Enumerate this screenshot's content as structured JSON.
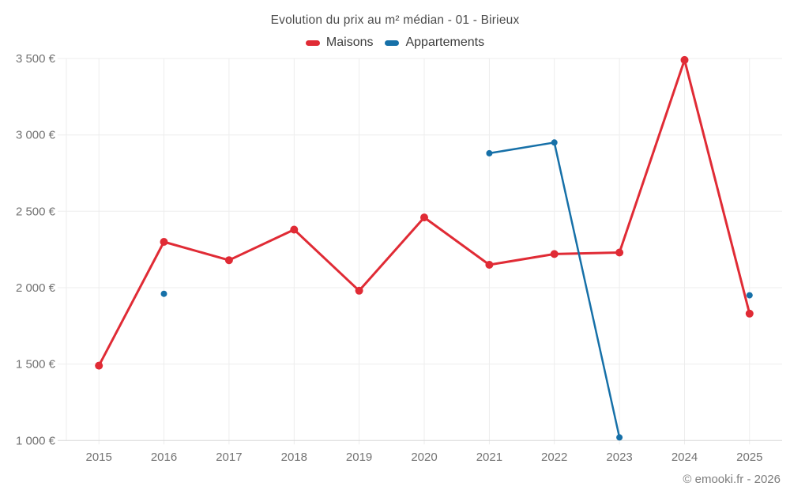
{
  "footer_credit": "© emooki.fr - 2026",
  "chart_data": {
    "type": "line",
    "title": "Evolution du prix au m² médian - 01 - Birieux",
    "xlabel": "",
    "ylabel": "",
    "x": [
      2015,
      2016,
      2017,
      2018,
      2019,
      2020,
      2021,
      2022,
      2023,
      2024,
      2025
    ],
    "series": [
      {
        "name": "Maisons",
        "color": "#e02b35",
        "line_width": 3,
        "point_radius": 5,
        "values": [
          1490,
          2300,
          2180,
          2380,
          1980,
          2460,
          2150,
          2220,
          2230,
          3490,
          1830
        ]
      },
      {
        "name": "Appartements",
        "color": "#1670a8",
        "line_width": 2.5,
        "point_radius": 4,
        "values": [
          null,
          1960,
          null,
          null,
          null,
          null,
          2880,
          2950,
          1020,
          null,
          1950
        ]
      }
    ],
    "ylim": [
      1000,
      3500
    ],
    "ytick_step": 500,
    "ytick_suffix": " €",
    "grid": true,
    "legend_position": "top"
  }
}
